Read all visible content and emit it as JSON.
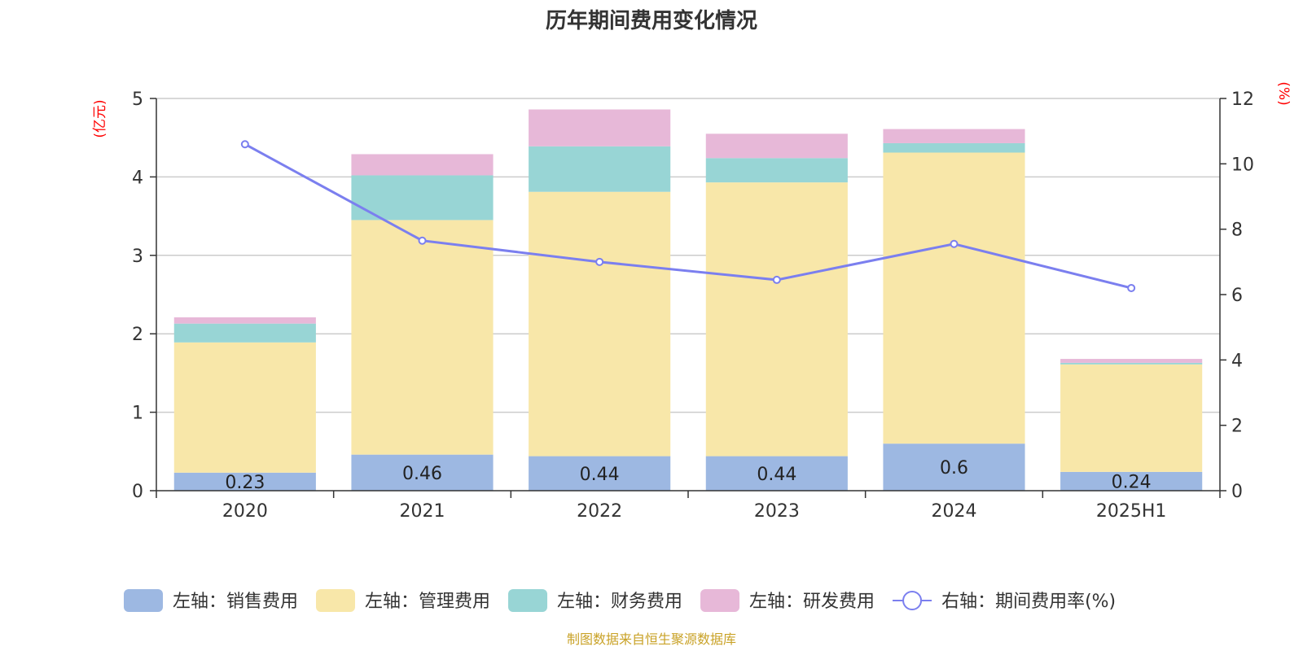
{
  "title": "历年期间费用变化情况",
  "source": "制图数据来自恒生聚源数据库",
  "colors": {
    "sales": "#9db8e2",
    "admin": "#f8e7a9",
    "finance": "#98d5d5",
    "rnd": "#e7b8d8",
    "ratio": "#7b7fef"
  },
  "chart_data": {
    "type": "bar",
    "stacked": true,
    "categories": [
      "2020",
      "2021",
      "2022",
      "2023",
      "2024",
      "2025H1"
    ],
    "left_axis": {
      "unit": "(亿元)",
      "ylim": [
        0,
        5
      ],
      "ticks": [
        "0",
        "1",
        "2",
        "3",
        "4",
        "5"
      ]
    },
    "right_axis": {
      "unit": "(%)",
      "ylim": [
        0,
        12
      ],
      "ticks": [
        "0",
        "2",
        "4",
        "6",
        "8",
        "10",
        "12"
      ]
    },
    "grid": true,
    "legend_position": "bottom",
    "series": [
      {
        "name": "左轴：销售费用",
        "key": "sales",
        "axis": "left",
        "type": "bar",
        "values": [
          0.23,
          0.46,
          0.44,
          0.44,
          0.6,
          0.24
        ],
        "labels": [
          "0.23",
          "0.46",
          "0.44",
          "0.44",
          "0.6",
          "0.24"
        ]
      },
      {
        "name": "左轴：管理费用",
        "key": "admin",
        "axis": "left",
        "type": "bar",
        "values": [
          1.66,
          2.99,
          3.37,
          3.49,
          3.71,
          1.37
        ]
      },
      {
        "name": "左轴：财务费用",
        "key": "finance",
        "axis": "left",
        "type": "bar",
        "values": [
          0.24,
          0.57,
          0.58,
          0.31,
          0.12,
          0.02
        ]
      },
      {
        "name": "左轴：研发费用",
        "key": "rnd",
        "axis": "left",
        "type": "bar",
        "values": [
          0.08,
          0.27,
          0.47,
          0.31,
          0.18,
          0.05
        ]
      },
      {
        "name": "右轴：期间费用率(%)",
        "key": "ratio",
        "axis": "right",
        "type": "line",
        "values": [
          10.6,
          7.65,
          7.0,
          6.45,
          7.55,
          6.2
        ]
      }
    ]
  }
}
